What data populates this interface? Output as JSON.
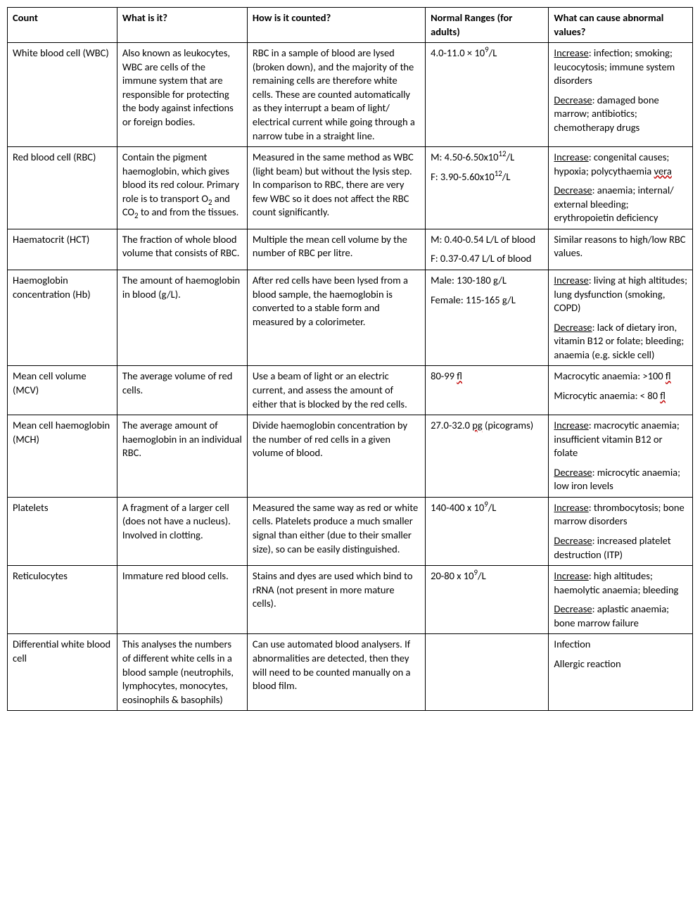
{
  "columns": [
    "Count",
    "What is it?",
    "How is it counted?",
    "Normal Ranges (for adults)",
    "What can cause abnormal values?"
  ],
  "rows": [
    {
      "count": "White blood cell (WBC)",
      "what": "Also known as leukocytes, WBC are cells of the immune system that are responsible for protecting the body against infections or foreign bodies.",
      "how": "RBC in a sample of blood are lysed (broken down), and the majority of the remaining cells are therefore white cells. These are counted automatically as they interrupt a beam of light/ electrical current while going through a narrow tube in a straight line.",
      "range": "4.0-11.0 × 10<sup>9</sup>/L",
      "abnormal": "<p><span class='u'>Increase</span>: infection; smoking; leucocytosis; immune system disorders</p><p><span class='u'>Decrease</span>: damaged bone marrow; antibiotics; chemotherapy drugs</p>"
    },
    {
      "count": "Red blood cell (RBC)",
      "what": "Contain the pigment haemoglobin, which gives blood its red colour. Primary role is to transport O<sub>2</sub> and CO<sub>2</sub> to and from the tissues.",
      "how": "Measured in the same method as WBC (light beam) but without the lysis step. In comparison to RBC, there are very few WBC so it does not affect the RBC count significantly.",
      "range": "<p>M: 4.50-6.50x10<sup>12</sup>/L</p><p>F: 3.90-5.60x10<sup>12</sup>/L</p>",
      "abnormal": "<p><span class='u'>Increase</span>: congenital causes; hypoxia; polycythaemia <span class='wavy'>vera</span></p><p><span class='u'>Decrease</span>: anaemia; internal/ external bleeding; erythropoietin deficiency</p>"
    },
    {
      "count": "Haematocrit (HCT)",
      "what": "The fraction of whole blood volume that consists of RBC.",
      "how": "Multiple the mean cell volume by the number of RBC per litre.",
      "range": "<p>M: 0.40-0.54 L/L of blood</p><p>F: 0.37-0.47 L/L of blood</p>",
      "abnormal": "Similar reasons to high/low RBC values."
    },
    {
      "count": "Haemoglobin concentration (Hb)",
      "what": "The amount of haemoglobin in blood (g/L).",
      "how": "After red cells have been lysed from a blood sample, the haemoglobin is converted to a stable form and measured by a colorimeter.",
      "range": "<p>Male: 130-180 g/L</p><p>Female: 115-165 g/L</p>",
      "abnormal": "<p><span class='u'>Increase</span>: living at high altitudes; lung dysfunction (smoking, COPD)</p><p><span class='u'>Decrease</span>: lack of dietary iron, vitamin B12 or folate; bleeding; anaemia (e.g. sickle cell)</p>"
    },
    {
      "count": "Mean cell volume (MCV)",
      "what": "The average volume of red cells.",
      "how": "Use a beam of light or an electric current, and assess the amount of either that is blocked by the red cells.",
      "range": "80-99 <span class='wavy'>fl</span>",
      "abnormal": "<p>Macrocytic anaemia: >100 <span class='wavy'>fl</span></p><p>Microcytic anaemia: < 80 <span class='wavy'>fl</span></p>"
    },
    {
      "count": "Mean cell haemoglobin (MCH)",
      "what": "The average amount of haemoglobin in an individual RBC.",
      "how": "Divide haemoglobin concentration by the number of red cells in a given volume of blood.",
      "range": "27.0-32.0 <span class='wavy'>pg</span> (picograms)",
      "abnormal": "<p><span class='u'>Increase</span>: macrocytic anaemia; insufficient vitamin B12 or folate</p><p><span class='u'>Decrease</span>: microcytic anaemia; low iron levels</p>"
    },
    {
      "count": "Platelets",
      "what": "A fragment of a larger cell (does not have a nucleus). Involved in clotting.",
      "how": "Measured the same way as red or white cells. Platelets produce a much smaller signal than either (due to their smaller size), so can be easily distinguished.",
      "range": "140-400 x 10<sup>9</sup>/L",
      "abnormal": "<p><span class='u'>Increase</span>: thrombocytosis; bone marrow disorders</p><p><span class='u'>Decrease</span>: increased platelet destruction (ITP)</p>"
    },
    {
      "count": "Reticulocytes",
      "what": "Immature red blood cells.",
      "how": "Stains and dyes are used which bind to rRNA (not present in more mature cells).",
      "range": "20-80 x 10<sup>9</sup>/L",
      "abnormal": "<p><span class='u'>Increase</span>: high altitudes; haemolytic anaemia; bleeding</p><p><span class='u'>Decrease</span>: aplastic anaemia; bone marrow failure</p>"
    },
    {
      "count": "Differential white blood cell",
      "what": "This analyses the numbers of different white cells in a blood sample (neutrophils, lymphocytes, monocytes, eosinophils & basophils)",
      "how": "Can use automated blood analysers. If abnormalities are detected, then they will need to be counted manually on a blood film.",
      "range": "",
      "abnormal": "<p>Infection</p><p>Allergic reaction</p>"
    }
  ],
  "style": {
    "font_family": "Calibri, Arial, sans-serif",
    "font_size_pt": 11,
    "border_color": "#000000",
    "background_color": "#ffffff",
    "text_color": "#000000",
    "wavy_underline_color": "#c00000",
    "column_widths_pct": [
      16,
      19,
      26,
      18,
      21
    ]
  }
}
